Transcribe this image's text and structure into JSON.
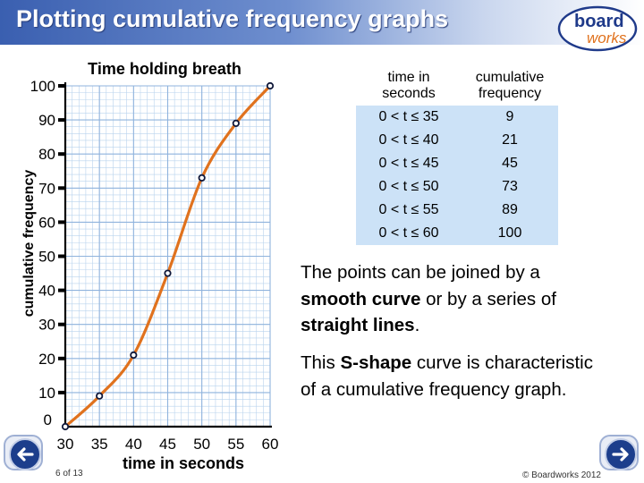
{
  "slide": {
    "title": "Plotting cumulative frequency graphs",
    "page_label": "6 of 13",
    "copyright": "© Boardworks 2012",
    "logo_line1": "board",
    "logo_line2": "works"
  },
  "table": {
    "header_interval": "time in seconds",
    "header_cf": "cumulative frequency",
    "rows": [
      {
        "interval": "0 < t ≤ 35",
        "cf": "9"
      },
      {
        "interval": "0 < t ≤ 40",
        "cf": "21"
      },
      {
        "interval": "0 < t ≤ 45",
        "cf": "45"
      },
      {
        "interval": "0 < t ≤ 50",
        "cf": "73"
      },
      {
        "interval": "0 < t ≤ 55",
        "cf": "89"
      },
      {
        "interval": "0 < t ≤ 60",
        "cf": "100"
      }
    ]
  },
  "notes": {
    "p1_a": "The points can be joined by a ",
    "p1_b": "smooth curve",
    "p1_c": " or by a series of ",
    "p1_d": "straight lines",
    "p1_e": ".",
    "p2_a": "This ",
    "p2_b": "S-shape",
    "p2_c": " curve is characteristic of a cumulative frequency graph."
  },
  "colors": {
    "title_bar": "#3a5fb0",
    "grid": "#b9d3ee",
    "curve": "#e0721e",
    "point": "#10183a",
    "table_cell": "#cce2f7"
  },
  "chart_data": {
    "type": "line",
    "title": "Time holding breath",
    "xlabel": "time in seconds",
    "ylabel": "cumulative frequency",
    "xlim": [
      30,
      60
    ],
    "ylim": [
      0,
      100
    ],
    "x_ticks": [
      30,
      35,
      40,
      45,
      50,
      55,
      60
    ],
    "y_ticks": [
      0,
      10,
      20,
      30,
      40,
      50,
      60,
      70,
      80,
      90,
      100
    ],
    "x": [
      30,
      35,
      40,
      45,
      50,
      55,
      60
    ],
    "y": [
      0,
      9,
      21,
      45,
      73,
      89,
      100
    ],
    "grid": true,
    "smooth": true
  }
}
